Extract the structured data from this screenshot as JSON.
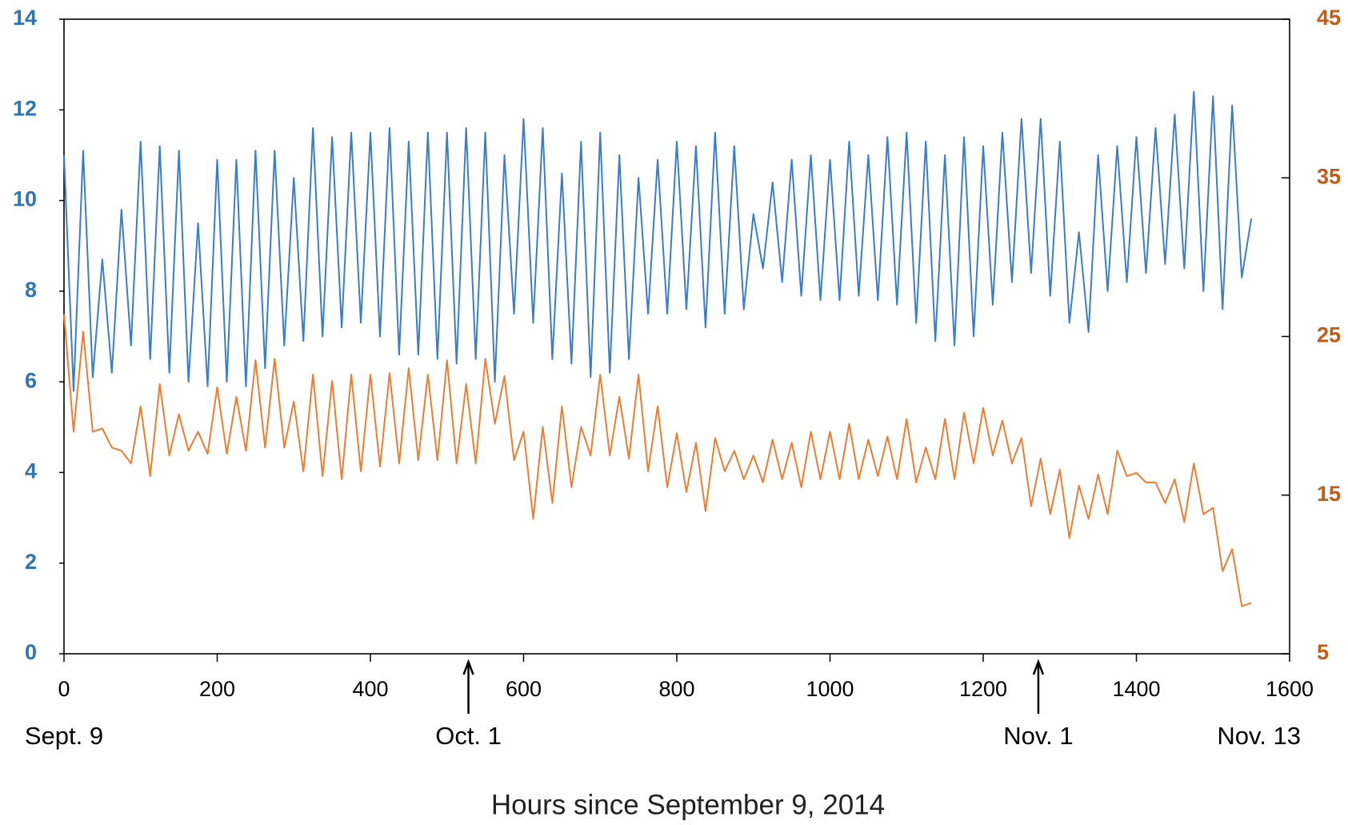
{
  "chart_data": {
    "type": "line",
    "x_label": "Hours since September 9, 2014",
    "xlim": [
      0,
      1600
    ],
    "xticks": [
      0,
      200,
      400,
      600,
      800,
      1000,
      1200,
      1400,
      1600
    ],
    "ylim": [
      0,
      14
    ],
    "yticks": [
      0,
      2,
      4,
      6,
      8,
      10,
      12,
      14
    ],
    "ytick_color": "#2e75b6",
    "y2lim": [
      5,
      45
    ],
    "y2ticks": [
      5,
      15,
      25,
      35,
      45
    ],
    "y2tick_color": "#c55a11",
    "annotations": [
      {
        "text": "Sept. 9",
        "x": 0
      },
      {
        "text": "Oct. 1",
        "x": 528,
        "arrow": true
      },
      {
        "text": "Nov. 1",
        "x": 1272,
        "arrow": true
      },
      {
        "text": "Nov. 13",
        "x": 1560
      }
    ],
    "x": [
      0,
      12.5,
      25,
      37.5,
      50,
      62.5,
      75,
      87.5,
      100,
      112.5,
      125,
      137.5,
      150,
      162.5,
      175,
      187.5,
      200,
      212.5,
      225,
      237.5,
      250,
      262.5,
      275,
      287.5,
      300,
      312.5,
      325,
      337.5,
      350,
      362.5,
      375,
      387.5,
      400,
      412.5,
      425,
      437.5,
      450,
      462.5,
      475,
      487.5,
      500,
      512.5,
      525,
      537.5,
      550,
      562.5,
      575,
      587.5,
      600,
      612.5,
      625,
      637.5,
      650,
      662.5,
      675,
      687.5,
      700,
      712.5,
      725,
      737.5,
      750,
      762.5,
      775,
      787.5,
      800,
      812.5,
      825,
      837.5,
      850,
      862.5,
      875,
      887.5,
      900,
      912.5,
      925,
      937.5,
      950,
      962.5,
      975,
      987.5,
      1000,
      1012.5,
      1025,
      1037.5,
      1050,
      1062.5,
      1075,
      1087.5,
      1100,
      1112.5,
      1125,
      1137.5,
      1150,
      1162.5,
      1175,
      1187.5,
      1200,
      1212.5,
      1225,
      1237.5,
      1250,
      1262.5,
      1275,
      1287.5,
      1300,
      1312.5,
      1325,
      1337.5,
      1350,
      1362.5,
      1375,
      1387.5,
      1400,
      1412.5,
      1425,
      1437.5,
      1450,
      1462.5,
      1475,
      1487.5,
      1500,
      1512.5,
      1525,
      1537.5,
      1550
    ],
    "series": [
      {
        "color": "#3a7dc9",
        "values": [
          11.0,
          5.8,
          11.1,
          6.1,
          8.7,
          6.2,
          9.8,
          6.8,
          11.3,
          6.5,
          11.2,
          6.2,
          11.1,
          6.0,
          9.5,
          5.9,
          10.9,
          6.0,
          10.9,
          5.9,
          11.1,
          6.3,
          11.1,
          6.8,
          10.5,
          6.9,
          11.6,
          7.0,
          11.4,
          7.2,
          11.5,
          7.3,
          11.5,
          7.0,
          11.6,
          6.6,
          11.3,
          6.6,
          11.5,
          6.5,
          11.5,
          6.4,
          11.6,
          6.5,
          11.5,
          6.0,
          11.0,
          7.5,
          11.8,
          7.3,
          11.6,
          6.5,
          10.6,
          6.4,
          11.3,
          6.1,
          11.5,
          6.2,
          11.0,
          6.5,
          10.5,
          7.5,
          10.9,
          7.5,
          11.3,
          7.6,
          11.2,
          7.2,
          11.5,
          7.5,
          11.2,
          7.6,
          9.7,
          8.5,
          10.4,
          8.2,
          10.9,
          7.9,
          11.0,
          7.8,
          10.9,
          7.8,
          11.3,
          7.9,
          11.0,
          7.8,
          11.4,
          7.7,
          11.5,
          7.3,
          11.3,
          6.9,
          11.0,
          6.8,
          11.4,
          7.0,
          11.2,
          7.7,
          11.5,
          8.2,
          11.8,
          8.4,
          11.8,
          7.9,
          11.3,
          7.3,
          9.3,
          7.1,
          11.0,
          8.0,
          11.2,
          8.2,
          11.4,
          8.4,
          11.6,
          8.6,
          11.9,
          8.5,
          12.4,
          8.0,
          12.3,
          7.6,
          12.1,
          8.3,
          9.6
        ]
      },
      {
        "color": "#ed7d31",
        "axis": "y2",
        "values": [
          26.4,
          19.0,
          25.3,
          19.0,
          19.2,
          18.0,
          17.8,
          17.0,
          20.6,
          16.2,
          22.0,
          17.5,
          20.1,
          17.8,
          19.0,
          17.6,
          21.8,
          17.6,
          21.2,
          17.8,
          23.5,
          18.0,
          23.6,
          18.0,
          20.9,
          16.5,
          22.6,
          16.2,
          22.2,
          16.0,
          22.6,
          16.5,
          22.6,
          16.8,
          22.7,
          17.0,
          23.0,
          17.2,
          22.6,
          17.2,
          23.5,
          17.0,
          22.0,
          17.0,
          23.6,
          19.5,
          22.5,
          17.2,
          19.0,
          13.5,
          19.3,
          14.5,
          20.6,
          15.5,
          19.3,
          17.5,
          22.6,
          17.5,
          21.2,
          17.3,
          22.6,
          16.5,
          20.6,
          15.5,
          18.9,
          15.2,
          18.3,
          14.0,
          18.6,
          16.5,
          17.8,
          16.0,
          17.5,
          15.8,
          18.5,
          16.0,
          18.3,
          15.5,
          19.0,
          16.0,
          19.0,
          16.0,
          19.5,
          16.0,
          18.5,
          16.2,
          18.7,
          16.0,
          19.8,
          15.8,
          18.0,
          16.0,
          19.8,
          16.0,
          20.2,
          17.0,
          20.5,
          17.5,
          19.7,
          17.0,
          18.6,
          14.3,
          17.3,
          13.8,
          16.6,
          12.3,
          15.6,
          13.5,
          16.3,
          13.8,
          17.8,
          16.2,
          16.4,
          15.8,
          15.8,
          14.5,
          16.0,
          13.3,
          17.0,
          13.8,
          14.2,
          10.2,
          11.6,
          8.0,
          8.2
        ]
      }
    ]
  }
}
